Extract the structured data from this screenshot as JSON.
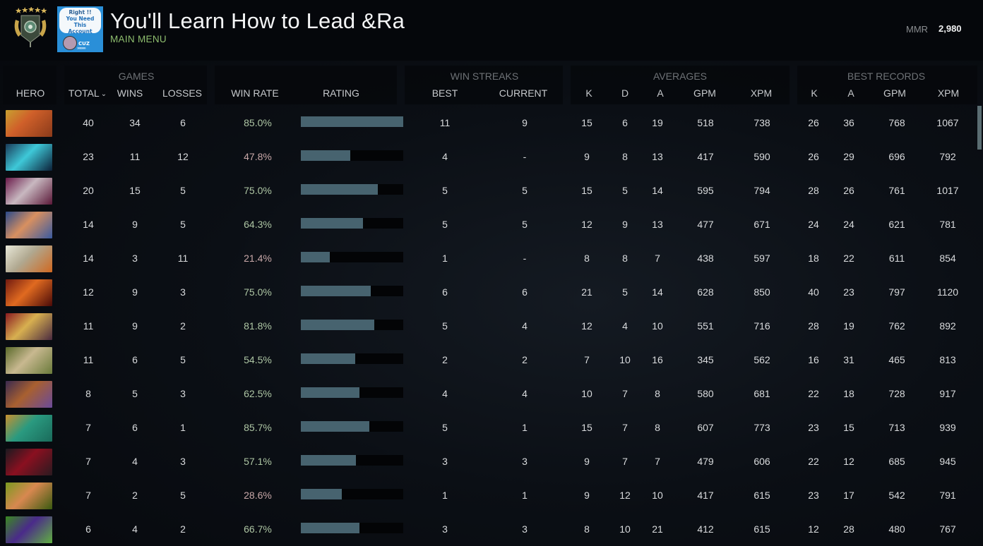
{
  "header": {
    "title": "You'll Learn How to Lead &Ra",
    "subtitle": "MAIN MENU",
    "promo": {
      "line1": "Right !!",
      "line2": "You Need This",
      "line3": "Account",
      "tag": "CUZ",
      "arrows": "»»»»»"
    },
    "mmr_label": "MMR",
    "mmr_value": "2,980"
  },
  "columns": {
    "hero": "HERO",
    "groups": {
      "games": "GAMES",
      "win_streaks": "WIN STREAKS",
      "averages": "AVERAGES",
      "best_records": "BEST RECORDS"
    },
    "total": "TOTAL",
    "sort_icon": "⌄",
    "wins": "WINS",
    "losses": "LOSSES",
    "win_rate": "WIN RATE",
    "rating": "RATING",
    "streak_best": "BEST",
    "streak_current": "CURRENT",
    "avg_k": "K",
    "avg_d": "D",
    "avg_a": "A",
    "avg_gpm": "GPM",
    "avg_xpm": "XPM",
    "best_k": "K",
    "best_a": "A",
    "best_gpm": "GPM",
    "best_xpm": "XPM"
  },
  "colors": {
    "bar_fill": "#47636f",
    "win_rate_good": "#aec6a4",
    "win_rate_bad": "#c8a8a8",
    "subtitle_green": "#8fbf6f"
  },
  "rows": [
    {
      "portrait": "hero-portrait-1",
      "total": "40",
      "wins": "34",
      "losses": "6",
      "win_rate": "85.0%",
      "rating_pct": 100,
      "streak_best": "11",
      "streak_current": "9",
      "avg_k": "15",
      "avg_d": "6",
      "avg_a": "19",
      "avg_gpm": "518",
      "avg_xpm": "738",
      "best_k": "26",
      "best_a": "36",
      "best_gpm": "768",
      "best_xpm": "1067"
    },
    {
      "portrait": "hero-portrait-2",
      "total": "23",
      "wins": "11",
      "losses": "12",
      "win_rate": "47.8%",
      "rating_pct": 48,
      "streak_best": "4",
      "streak_current": "-",
      "avg_k": "9",
      "avg_d": "8",
      "avg_a": "13",
      "avg_gpm": "417",
      "avg_xpm": "590",
      "best_k": "26",
      "best_a": "29",
      "best_gpm": "696",
      "best_xpm": "792"
    },
    {
      "portrait": "hero-portrait-3",
      "total": "20",
      "wins": "15",
      "losses": "5",
      "win_rate": "75.0%",
      "rating_pct": 75,
      "streak_best": "5",
      "streak_current": "5",
      "avg_k": "15",
      "avg_d": "5",
      "avg_a": "14",
      "avg_gpm": "595",
      "avg_xpm": "794",
      "best_k": "28",
      "best_a": "26",
      "best_gpm": "761",
      "best_xpm": "1017"
    },
    {
      "portrait": "hero-portrait-4",
      "total": "14",
      "wins": "9",
      "losses": "5",
      "win_rate": "64.3%",
      "rating_pct": 61,
      "streak_best": "5",
      "streak_current": "5",
      "avg_k": "12",
      "avg_d": "9",
      "avg_a": "13",
      "avg_gpm": "477",
      "avg_xpm": "671",
      "best_k": "24",
      "best_a": "24",
      "best_gpm": "621",
      "best_xpm": "781"
    },
    {
      "portrait": "hero-portrait-5",
      "total": "14",
      "wins": "3",
      "losses": "11",
      "win_rate": "21.4%",
      "rating_pct": 28,
      "streak_best": "1",
      "streak_current": "-",
      "avg_k": "8",
      "avg_d": "8",
      "avg_a": "7",
      "avg_gpm": "438",
      "avg_xpm": "597",
      "best_k": "18",
      "best_a": "22",
      "best_gpm": "611",
      "best_xpm": "854"
    },
    {
      "portrait": "hero-portrait-6",
      "total": "12",
      "wins": "9",
      "losses": "3",
      "win_rate": "75.0%",
      "rating_pct": 68,
      "streak_best": "6",
      "streak_current": "6",
      "avg_k": "21",
      "avg_d": "5",
      "avg_a": "14",
      "avg_gpm": "628",
      "avg_xpm": "850",
      "best_k": "40",
      "best_a": "23",
      "best_gpm": "797",
      "best_xpm": "1120"
    },
    {
      "portrait": "hero-portrait-7",
      "total": "11",
      "wins": "9",
      "losses": "2",
      "win_rate": "81.8%",
      "rating_pct": 72,
      "streak_best": "5",
      "streak_current": "4",
      "avg_k": "12",
      "avg_d": "4",
      "avg_a": "10",
      "avg_gpm": "551",
      "avg_xpm": "716",
      "best_k": "28",
      "best_a": "19",
      "best_gpm": "762",
      "best_xpm": "892"
    },
    {
      "portrait": "hero-portrait-8",
      "total": "11",
      "wins": "6",
      "losses": "5",
      "win_rate": "54.5%",
      "rating_pct": 53,
      "streak_best": "2",
      "streak_current": "2",
      "avg_k": "7",
      "avg_d": "10",
      "avg_a": "16",
      "avg_gpm": "345",
      "avg_xpm": "562",
      "best_k": "16",
      "best_a": "31",
      "best_gpm": "465",
      "best_xpm": "813"
    },
    {
      "portrait": "hero-portrait-9",
      "total": "8",
      "wins": "5",
      "losses": "3",
      "win_rate": "62.5%",
      "rating_pct": 57,
      "streak_best": "4",
      "streak_current": "4",
      "avg_k": "10",
      "avg_d": "7",
      "avg_a": "8",
      "avg_gpm": "580",
      "avg_xpm": "681",
      "best_k": "22",
      "best_a": "18",
      "best_gpm": "728",
      "best_xpm": "917"
    },
    {
      "portrait": "hero-portrait-10",
      "total": "7",
      "wins": "6",
      "losses": "1",
      "win_rate": "85.7%",
      "rating_pct": 67,
      "streak_best": "5",
      "streak_current": "1",
      "avg_k": "15",
      "avg_d": "7",
      "avg_a": "8",
      "avg_gpm": "607",
      "avg_xpm": "773",
      "best_k": "23",
      "best_a": "15",
      "best_gpm": "713",
      "best_xpm": "939"
    },
    {
      "portrait": "hero-portrait-11",
      "total": "7",
      "wins": "4",
      "losses": "3",
      "win_rate": "57.1%",
      "rating_pct": 54,
      "streak_best": "3",
      "streak_current": "3",
      "avg_k": "9",
      "avg_d": "7",
      "avg_a": "7",
      "avg_gpm": "479",
      "avg_xpm": "606",
      "best_k": "22",
      "best_a": "12",
      "best_gpm": "685",
      "best_xpm": "945"
    },
    {
      "portrait": "hero-portrait-12",
      "total": "7",
      "wins": "2",
      "losses": "5",
      "win_rate": "28.6%",
      "rating_pct": 40,
      "streak_best": "1",
      "streak_current": "1",
      "avg_k": "9",
      "avg_d": "12",
      "avg_a": "10",
      "avg_gpm": "417",
      "avg_xpm": "615",
      "best_k": "23",
      "best_a": "17",
      "best_gpm": "542",
      "best_xpm": "791"
    },
    {
      "portrait": "hero-portrait-13",
      "total": "6",
      "wins": "4",
      "losses": "2",
      "win_rate": "66.7%",
      "rating_pct": 57,
      "streak_best": "3",
      "streak_current": "3",
      "avg_k": "8",
      "avg_d": "10",
      "avg_a": "21",
      "avg_gpm": "412",
      "avg_xpm": "615",
      "best_k": "12",
      "best_a": "28",
      "best_gpm": "480",
      "best_xpm": "767"
    }
  ]
}
